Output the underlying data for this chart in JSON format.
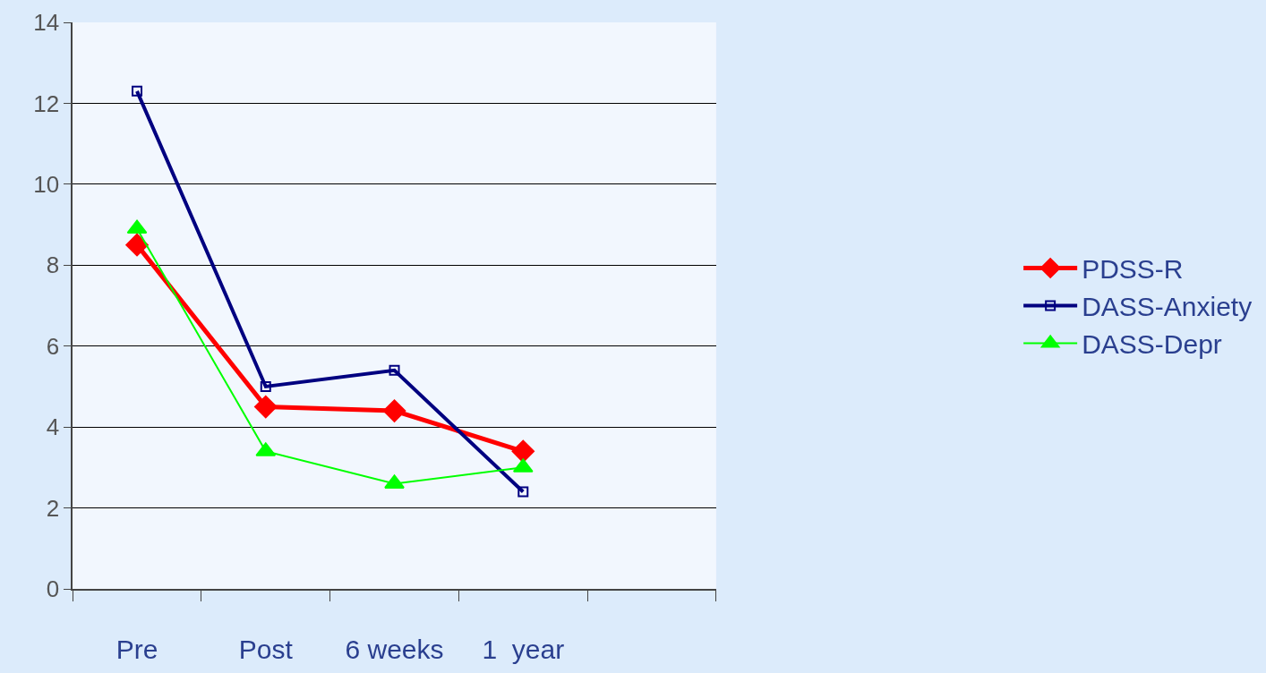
{
  "chart_data": {
    "type": "line",
    "categories": [
      "Pre",
      "Post",
      "6 weeks",
      "1  year",
      null
    ],
    "series": [
      {
        "name": "PDSS-R",
        "color": "#ff0000",
        "marker": "diamond",
        "values": [
          8.5,
          4.5,
          4.4,
          3.4,
          null
        ]
      },
      {
        "name": "DASS-Anxiety",
        "color": "#000080",
        "marker": "square",
        "values": [
          12.3,
          5.0,
          5.4,
          2.4,
          null
        ]
      },
      {
        "name": "DASS-Depr",
        "color": "#00ff00",
        "marker": "triangle",
        "values": [
          8.9,
          3.4,
          2.6,
          3.0,
          null
        ]
      }
    ],
    "ylim": [
      0,
      14
    ],
    "yticks": [
      0,
      2,
      4,
      6,
      8,
      10,
      12,
      14
    ],
    "grid": "y",
    "legend": "right"
  }
}
